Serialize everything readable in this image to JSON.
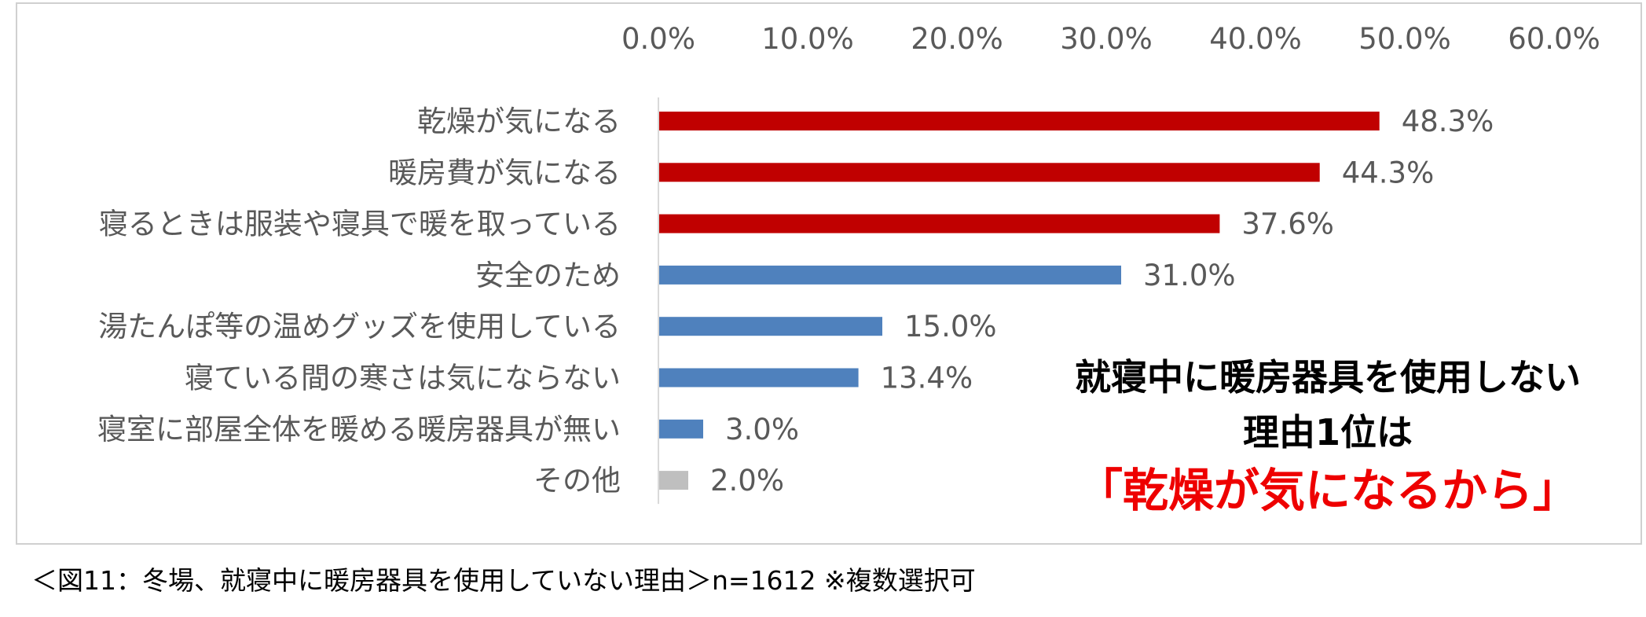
{
  "chart_data": {
    "type": "bar",
    "orientation": "horizontal",
    "categories": [
      "乾燥が気になる",
      "暖房費が気になる",
      "寝るときは服装や寝具で暖を取っている",
      "安全のため",
      "湯たんぽ等の温めグッズを使用している",
      "寝ている間の寒さは気にならない",
      "寝室に部屋全体を暖める暖房器具が無い",
      "その他"
    ],
    "values": [
      48.3,
      44.3,
      37.6,
      31.0,
      15.0,
      13.4,
      3.0,
      2.0
    ],
    "value_labels": [
      "48.3%",
      "44.3%",
      "37.6%",
      "31.0%",
      "15.0%",
      "13.4%",
      "3.0%",
      "2.0%"
    ],
    "bar_colors": [
      "#c00000",
      "#c00000",
      "#c00000",
      "#4f81bd",
      "#4f81bd",
      "#4f81bd",
      "#4f81bd",
      "#bfbfbf"
    ],
    "xlim": [
      0,
      60
    ],
    "xticks": [
      0,
      10,
      20,
      30,
      40,
      50,
      60
    ],
    "xtick_labels": [
      "0.0%",
      "10.0%",
      "20.0%",
      "30.0%",
      "40.0%",
      "50.0%",
      "60.0%"
    ],
    "x_axis_position": "top",
    "grid": false,
    "legend": "none"
  },
  "callout": {
    "line1": "就寝中に暖房器具を使用しない",
    "line2": "理由1位は",
    "line3": "「乾燥が気になるから」"
  },
  "caption": "＜図11：冬場、就寝中に暖房器具を使用していない理由＞n=1612 ※複数選択可",
  "colors": {
    "highlight_text": "#ee0000",
    "axis_text": "#595959"
  }
}
